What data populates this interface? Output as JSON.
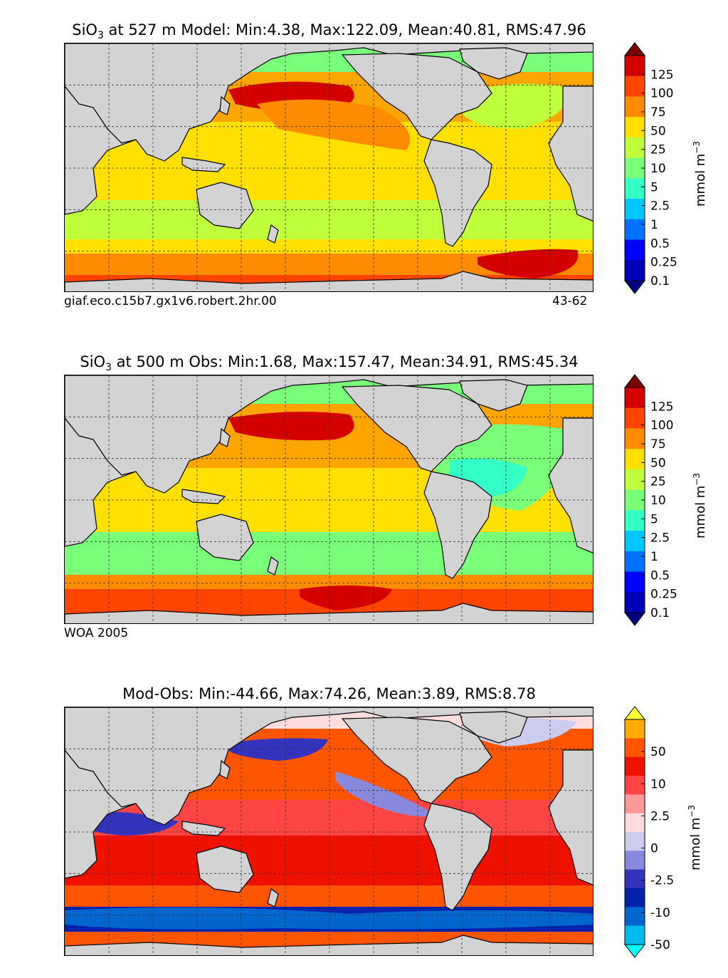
{
  "panels": [
    {
      "title_pre": "SiO",
      "title_sub": "3",
      "title_post": " at 527 m Model: Min:4.38, Max:122.09, Mean:40.81, RMS:47.96",
      "footer_left": "giaf.eco.c15b7.gx1v6.robert.2hr.00",
      "footer_right": "43-62",
      "unit_main": "mmol m",
      "unit_sup": "−3",
      "colorbar_ticks": [
        "125",
        "100",
        "75",
        "50",
        "25",
        "10",
        "5",
        "2.5",
        "1",
        "0.5",
        "0.25",
        "0.1"
      ],
      "colorbar_colors": [
        "#7a0000",
        "#d40000",
        "#ff4500",
        "#ff8c00",
        "#ffe000",
        "#bfff3c",
        "#7aff7a",
        "#33ffc6",
        "#00c8ff",
        "#0072ff",
        "#0000ff",
        "#0000b8",
        "#000080"
      ]
    },
    {
      "title_pre": "SiO",
      "title_sub": "3",
      "title_post": " at 500 m Obs: Min:1.68, Max:157.47, Mean:34.91, RMS:45.34",
      "footer_left": "WOA 2005",
      "footer_right": "",
      "unit_main": "mmol m",
      "unit_sup": "−3",
      "colorbar_ticks": [
        "125",
        "100",
        "75",
        "50",
        "25",
        "10",
        "5",
        "2.5",
        "1",
        "0.5",
        "0.25",
        "0.1"
      ],
      "colorbar_colors": [
        "#7a0000",
        "#d40000",
        "#ff4500",
        "#ff8c00",
        "#ffe000",
        "#bfff3c",
        "#7aff7a",
        "#33ffc6",
        "#00c8ff",
        "#0072ff",
        "#0000ff",
        "#0000b8",
        "#000080"
      ]
    },
    {
      "title_pre": "",
      "title_sub": "",
      "title_post": "Mod-Obs: Min:-44.66, Max:74.26, Mean:3.89, RMS:8.78",
      "footer_left": "",
      "footer_right": "",
      "unit_main": "mmol m",
      "unit_sup": "−3",
      "colorbar_ticks": [
        "50",
        "10",
        "2.5",
        "0",
        "-2.5",
        "-10",
        "-50"
      ],
      "colorbar_colors": [
        "#ffff33",
        "#ffaa00",
        "#ff5500",
        "#ee1100",
        "#ff4444",
        "#ff9999",
        "#ffdddd",
        "#ccccee",
        "#8888dd",
        "#3333bb",
        "#0022aa",
        "#0066cc",
        "#00bbee",
        "#00ffff"
      ]
    }
  ],
  "chart_data": [
    {
      "type": "heatmap",
      "title": "SiO3 at 527 m Model: Min:4.38, Max:122.09, Mean:40.81, RMS:47.96",
      "variable": "SiO3",
      "depth_m": 527,
      "source": "Model",
      "stats": {
        "min": 4.38,
        "max": 122.09,
        "mean": 40.81,
        "rms": 47.96
      },
      "colorbar_label": "mmol m^-3",
      "levels": [
        0.1,
        0.25,
        0.5,
        1,
        2.5,
        5,
        10,
        25,
        50,
        75,
        100,
        125
      ],
      "extend": "both",
      "footer": [
        "giaf.eco.c15b7.gx1v6.robert.2hr.00",
        "43-62"
      ]
    },
    {
      "type": "heatmap",
      "title": "SiO3 at 500 m Obs: Min:1.68, Max:157.47, Mean:34.91, RMS:45.34",
      "variable": "SiO3",
      "depth_m": 500,
      "source": "Obs",
      "stats": {
        "min": 1.68,
        "max": 157.47,
        "mean": 34.91,
        "rms": 45.34
      },
      "colorbar_label": "mmol m^-3",
      "levels": [
        0.1,
        0.25,
        0.5,
        1,
        2.5,
        5,
        10,
        25,
        50,
        75,
        100,
        125
      ],
      "extend": "both",
      "footer": [
        "WOA 2005"
      ]
    },
    {
      "type": "heatmap",
      "title": "Mod-Obs: Min:-44.66, Max:74.26, Mean:3.89, RMS:8.78",
      "variable": "SiO3 difference",
      "stats": {
        "min": -44.66,
        "max": 74.26,
        "mean": 3.89,
        "rms": 8.78
      },
      "colorbar_label": "mmol m^-3",
      "levels": [
        -50,
        -10,
        -2.5,
        0,
        2.5,
        10,
        50
      ],
      "extend": "both"
    }
  ]
}
